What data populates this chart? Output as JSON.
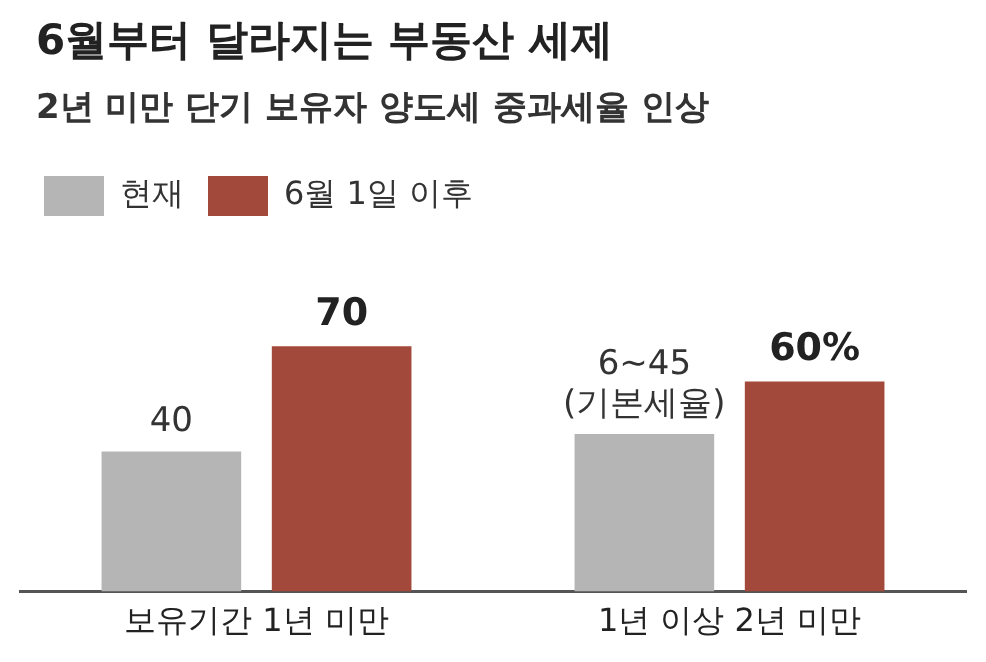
{
  "chart_data": {
    "type": "bar",
    "title": "6월부터 달라지는 부동산 세제",
    "subtitle": "2년 미만 단기 보유자 양도세 중과세율 인상",
    "categories": [
      "보유기간 1년 미만",
      "1년 이상 2년 미만"
    ],
    "series": [
      {
        "name": "현재",
        "color": "#b5b5b5",
        "values": [
          40,
          45
        ],
        "value_labels": [
          "40",
          "6~45 (기본세율)"
        ]
      },
      {
        "name": "6월 1일 이후",
        "color": "#a2493b",
        "values": [
          70,
          60
        ],
        "value_labels": [
          "70",
          "60%"
        ]
      }
    ],
    "legend": "top left",
    "grid": false
  }
}
